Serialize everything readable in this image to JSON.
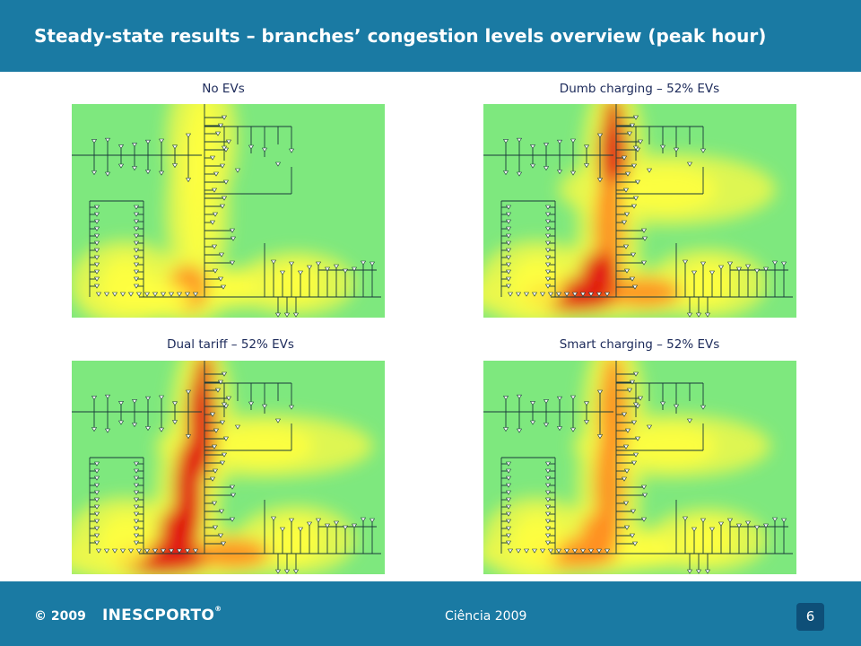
{
  "slide": {
    "title": "Steady-state results – branches’ congestion levels overview (peak hour)"
  },
  "panels": [
    {
      "title": "No EVs",
      "scenario": "no-evs"
    },
    {
      "title": "Dumb charging – 52% EVs",
      "scenario": "dumb-charging"
    },
    {
      "title": "Dual tariff – 52% EVs",
      "scenario": "dual-tariff"
    },
    {
      "title": "Smart charging – 52% EVs",
      "scenario": "smart-charging"
    }
  ],
  "footer": {
    "copyright": "© 2009",
    "logo": "INESCPORTO",
    "logo_mark": "®",
    "event": "Ciência 2009",
    "page_number": "6"
  },
  "colors": {
    "header_bg": "#1a7aa3",
    "footer_bg": "#1a7aa3",
    "page_badge_bg": "#0e4f78",
    "map_base": "#7ee87e",
    "congestion_low": "#ffff40",
    "congestion_mid": "#ff9a20",
    "congestion_high": "#e01010",
    "network_lines": "#1a3a3a"
  }
}
